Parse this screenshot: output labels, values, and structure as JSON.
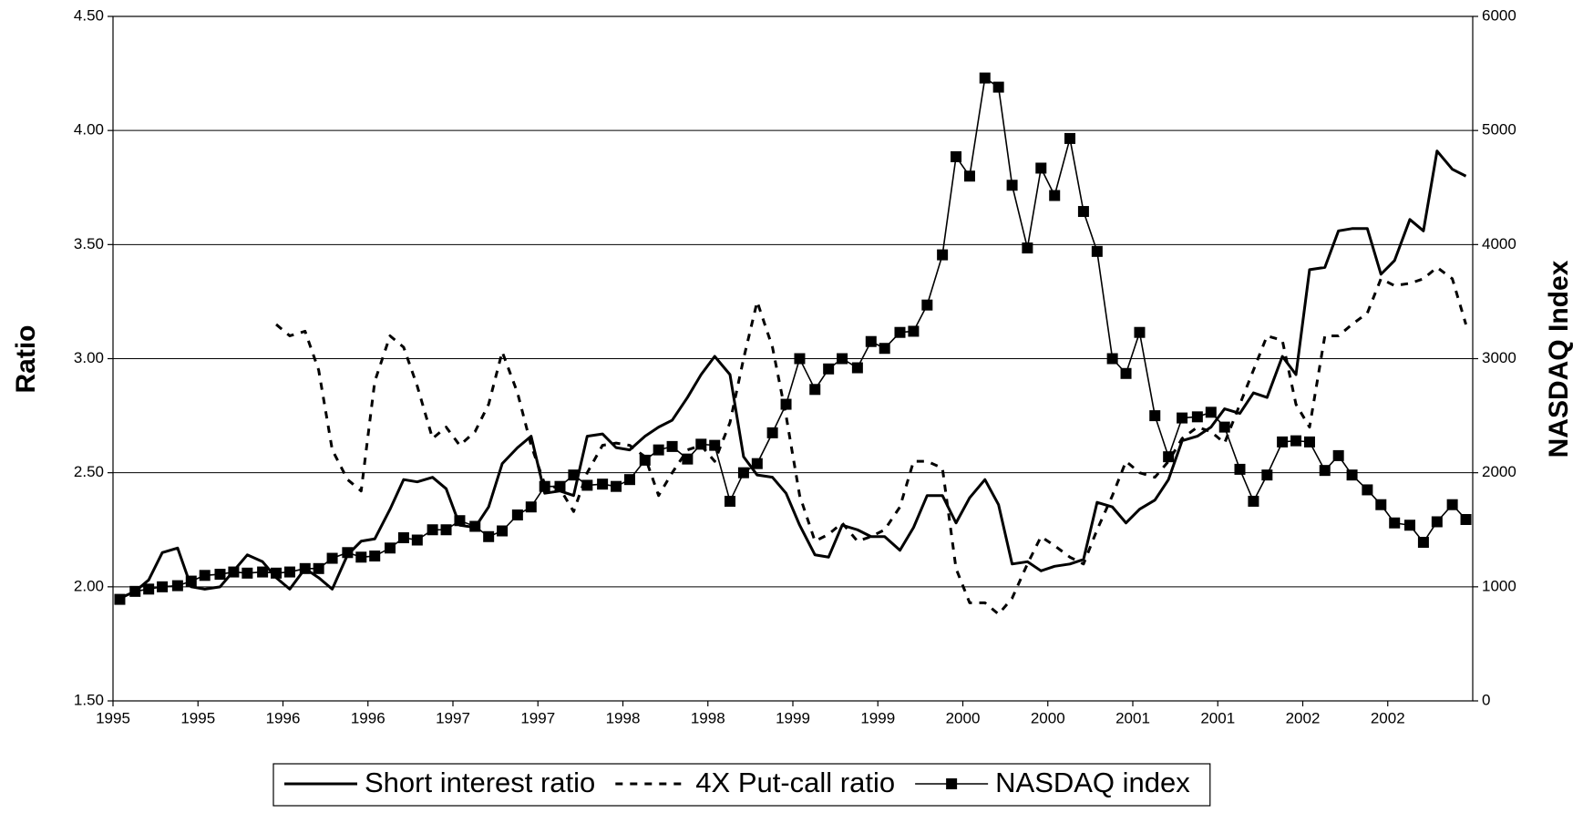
{
  "chart_data": {
    "type": "line",
    "y_label": "Ratio",
    "y2_label": "NASDAQ Index",
    "xlim": [
      1995,
      2003
    ],
    "xticks": [
      {
        "value": 1995,
        "label": "1995"
      },
      {
        "value": 1995.5,
        "label": "1995"
      },
      {
        "value": 1996,
        "label": "1996"
      },
      {
        "value": 1996.5,
        "label": "1996"
      },
      {
        "value": 1997,
        "label": "1997"
      },
      {
        "value": 1997.5,
        "label": "1997"
      },
      {
        "value": 1998,
        "label": "1998"
      },
      {
        "value": 1998.5,
        "label": "1998"
      },
      {
        "value": 1999,
        "label": "1999"
      },
      {
        "value": 1999.5,
        "label": "1999"
      },
      {
        "value": 2000,
        "label": "2000"
      },
      {
        "value": 2000.5,
        "label": "2000"
      },
      {
        "value": 2001,
        "label": "2001"
      },
      {
        "value": 2001.5,
        "label": "2001"
      },
      {
        "value": 2002,
        "label": "2002"
      },
      {
        "value": 2002.5,
        "label": "2002"
      }
    ],
    "ylim": [
      1.5,
      4.5
    ],
    "yticks": [
      {
        "value": 1.5,
        "label": "1.50"
      },
      {
        "value": 2,
        "label": "2.00"
      },
      {
        "value": 2.5,
        "label": "2.50"
      },
      {
        "value": 3,
        "label": "3.00"
      },
      {
        "value": 3.5,
        "label": "3.50"
      },
      {
        "value": 4,
        "label": "4.00"
      },
      {
        "value": 4.5,
        "label": "4.50"
      }
    ],
    "y2lim": [
      0,
      6000
    ],
    "y2ticks": [
      0,
      1000,
      2000,
      3000,
      4000,
      5000,
      6000
    ],
    "grid": true,
    "legend": "bottom",
    "x": [
      1995.04,
      1995.13,
      1995.21,
      1995.29,
      1995.38,
      1995.46,
      1995.54,
      1995.63,
      1995.71,
      1995.79,
      1995.88,
      1995.96,
      1996.04,
      1996.13,
      1996.21,
      1996.29,
      1996.38,
      1996.46,
      1996.54,
      1996.63,
      1996.71,
      1996.79,
      1996.88,
      1996.96,
      1997.04,
      1997.13,
      1997.21,
      1997.29,
      1997.38,
      1997.46,
      1997.54,
      1997.63,
      1997.71,
      1997.79,
      1997.88,
      1997.96,
      1998.04,
      1998.13,
      1998.21,
      1998.29,
      1998.38,
      1998.46,
      1998.54,
      1998.63,
      1998.71,
      1998.79,
      1998.88,
      1998.96,
      1999.04,
      1999.13,
      1999.21,
      1999.29,
      1999.38,
      1999.46,
      1999.54,
      1999.63,
      1999.71,
      1999.79,
      1999.88,
      1999.96,
      2000.04,
      2000.13,
      2000.21,
      2000.29,
      2000.38,
      2000.46,
      2000.54,
      2000.63,
      2000.71,
      2000.79,
      2000.88,
      2000.96,
      2001.04,
      2001.13,
      2001.21,
      2001.29,
      2001.38,
      2001.46,
      2001.54,
      2001.63,
      2001.71,
      2001.79,
      2001.88,
      2001.96,
      2002.04,
      2002.13,
      2002.21,
      2002.29,
      2002.38,
      2002.46,
      2002.54,
      2002.63,
      2002.71,
      2002.79,
      2002.88,
      2002.96
    ],
    "series": [
      {
        "name": "Short interest ratio",
        "color": "#000000",
        "style": "solid",
        "width": 3,
        "values": [
          1.95,
          1.98,
          2.03,
          2.15,
          2.17,
          2.0,
          1.99,
          2.0,
          2.07,
          2.14,
          2.11,
          2.04,
          1.99,
          2.08,
          2.04,
          1.99,
          2.14,
          2.2,
          2.21,
          2.34,
          2.47,
          2.46,
          2.48,
          2.43,
          2.27,
          2.26,
          2.35,
          2.54,
          2.61,
          2.66,
          2.41,
          2.42,
          2.4,
          2.66,
          2.67,
          2.61,
          2.6,
          2.66,
          2.7,
          2.73,
          2.83,
          2.93,
          3.01,
          2.93,
          2.57,
          2.49,
          2.48,
          2.41,
          2.27,
          2.14,
          2.13,
          2.27,
          2.25,
          2.22,
          2.22,
          2.16,
          2.26,
          2.4,
          2.4,
          2.28,
          2.39,
          2.47,
          2.36,
          2.1,
          2.11,
          2.07,
          2.09,
          2.1,
          2.12,
          2.37,
          2.35,
          2.28,
          2.34,
          2.38,
          2.47,
          2.64,
          2.66,
          2.7,
          2.78,
          2.76,
          2.85,
          2.83,
          3.01,
          2.93,
          3.39,
          3.4,
          3.56,
          3.57,
          3.57,
          3.37,
          3.43,
          3.61,
          3.56,
          3.91,
          3.83,
          3.8
        ]
      },
      {
        "name": "4X Put-call ratio",
        "color": "#000000",
        "style": "dashed",
        "width": 3,
        "values": [
          null,
          null,
          null,
          null,
          null,
          null,
          null,
          null,
          null,
          null,
          null,
          3.15,
          3.1,
          3.12,
          2.95,
          2.6,
          2.47,
          2.42,
          2.9,
          3.1,
          3.05,
          2.88,
          2.65,
          2.7,
          2.62,
          2.68,
          2.8,
          3.03,
          2.85,
          2.62,
          2.45,
          2.43,
          2.33,
          2.5,
          2.62,
          2.63,
          2.62,
          2.57,
          2.4,
          2.5,
          2.6,
          2.62,
          2.55,
          2.72,
          3.0,
          3.25,
          3.05,
          2.75,
          2.4,
          2.2,
          2.23,
          2.28,
          2.2,
          2.22,
          2.25,
          2.35,
          2.55,
          2.55,
          2.52,
          2.08,
          1.93,
          1.93,
          1.88,
          1.95,
          2.1,
          2.22,
          2.18,
          2.13,
          2.1,
          2.25,
          2.4,
          2.55,
          2.5,
          2.48,
          2.55,
          2.65,
          2.7,
          2.68,
          2.63,
          2.8,
          2.95,
          3.1,
          3.08,
          2.8,
          2.7,
          3.1,
          3.1,
          3.15,
          3.2,
          3.35,
          3.32,
          3.33,
          3.35,
          3.4,
          3.35,
          3.15
        ]
      },
      {
        "name": "NASDAQ index",
        "color": "#000000",
        "style": "solid",
        "width": 1.6,
        "marker": "square",
        "axis": "y2",
        "values": [
          890,
          960,
          980,
          1000,
          1010,
          1050,
          1100,
          1110,
          1130,
          1120,
          1130,
          1120,
          1130,
          1160,
          1160,
          1250,
          1300,
          1260,
          1270,
          1340,
          1430,
          1410,
          1500,
          1500,
          1580,
          1530,
          1440,
          1490,
          1630,
          1700,
          1880,
          1880,
          1980,
          1890,
          1900,
          1880,
          1940,
          2110,
          2200,
          2230,
          2120,
          2250,
          2240,
          1750,
          2000,
          2080,
          2350,
          2600,
          3000,
          2730,
          2910,
          3000,
          2920,
          3150,
          3090,
          3230,
          3240,
          3470,
          3910,
          4770,
          4600,
          5460,
          5380,
          4520,
          3970,
          4670,
          4430,
          4930,
          4290,
          3940,
          3000,
          2870,
          3230,
          2500,
          2140,
          2480,
          2490,
          2530,
          2400,
          2030,
          1750,
          1980,
          2270,
          2280,
          2270,
          2020,
          2150,
          1980,
          1850,
          1720,
          1560,
          1540,
          1390,
          1570,
          1720,
          1590
        ]
      }
    ]
  }
}
